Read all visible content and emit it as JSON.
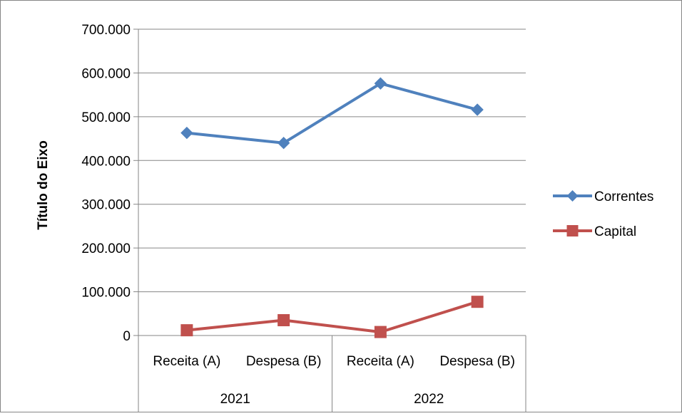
{
  "chart_data": {
    "type": "line",
    "ylabel": "Título do Eixo",
    "ylim": [
      0,
      700000
    ],
    "y_ticks": [
      {
        "value": 0,
        "label": "0"
      },
      {
        "value": 100000,
        "label": "100.000"
      },
      {
        "value": 200000,
        "label": "200.000"
      },
      {
        "value": 300000,
        "label": "300.000"
      },
      {
        "value": 400000,
        "label": "400.000"
      },
      {
        "value": 500000,
        "label": "500.000"
      },
      {
        "value": 600000,
        "label": "600.000"
      },
      {
        "value": 700000,
        "label": "700.000"
      }
    ],
    "categories": [
      "Receita (A)",
      "Despesa (B)",
      "Receita (A)",
      "Despesa (B)"
    ],
    "groups": [
      {
        "label": "2021",
        "span": 2
      },
      {
        "label": "2022",
        "span": 2
      }
    ],
    "grid": true,
    "legend_position": "right",
    "series": [
      {
        "name": "Correntes",
        "color": "#4F81BD",
        "marker": "diamond",
        "values": [
          463000,
          440000,
          576000,
          516000
        ]
      },
      {
        "name": "Capital",
        "color": "#C0504D",
        "marker": "square",
        "values": [
          12000,
          35000,
          8000,
          77000
        ]
      }
    ]
  }
}
